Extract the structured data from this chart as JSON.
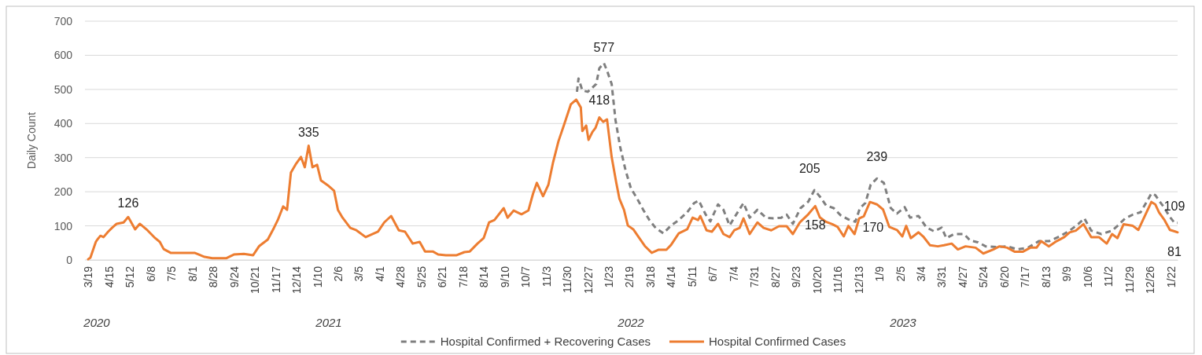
{
  "chart_data": {
    "type": "line",
    "ylabel": "Daily Count",
    "xlim": [
      "2020-03-19",
      "2024-01-31"
    ],
    "ylim": [
      0,
      700
    ],
    "yticks": [
      0,
      100,
      200,
      300,
      400,
      500,
      600,
      700
    ],
    "xticks": [
      {
        "value": "2020-03-19",
        "label": "3/19"
      },
      {
        "value": "2020-04-15",
        "label": "4/15"
      },
      {
        "value": "2020-05-12",
        "label": "5/12"
      },
      {
        "value": "2020-06-08",
        "label": "6/8"
      },
      {
        "value": "2020-07-05",
        "label": "7/5"
      },
      {
        "value": "2020-08-01",
        "label": "8/1"
      },
      {
        "value": "2020-08-28",
        "label": "8/28"
      },
      {
        "value": "2020-09-24",
        "label": "9/24"
      },
      {
        "value": "2020-10-21",
        "label": "10/21"
      },
      {
        "value": "2020-11-17",
        "label": "11/17"
      },
      {
        "value": "2020-12-14",
        "label": "12/14"
      },
      {
        "value": "2021-01-10",
        "label": "1/10"
      },
      {
        "value": "2021-02-06",
        "label": "2/6"
      },
      {
        "value": "2021-03-05",
        "label": "3/5"
      },
      {
        "value": "2021-04-01",
        "label": "4/1"
      },
      {
        "value": "2021-04-28",
        "label": "4/28"
      },
      {
        "value": "2021-05-25",
        "label": "5/25"
      },
      {
        "value": "2021-06-21",
        "label": "6/21"
      },
      {
        "value": "2021-07-18",
        "label": "7/18"
      },
      {
        "value": "2021-08-14",
        "label": "8/14"
      },
      {
        "value": "2021-09-10",
        "label": "9/10"
      },
      {
        "value": "2021-10-07",
        "label": "10/7"
      },
      {
        "value": "2021-11-03",
        "label": "11/3"
      },
      {
        "value": "2021-11-30",
        "label": "11/30"
      },
      {
        "value": "2021-12-27",
        "label": "12/27"
      },
      {
        "value": "2022-01-23",
        "label": "1/23"
      },
      {
        "value": "2022-02-19",
        "label": "2/19"
      },
      {
        "value": "2022-03-18",
        "label": "3/18"
      },
      {
        "value": "2022-04-14",
        "label": "4/14"
      },
      {
        "value": "2022-05-11",
        "label": "5/11"
      },
      {
        "value": "2022-06-07",
        "label": "6/7"
      },
      {
        "value": "2022-07-04",
        "label": "7/4"
      },
      {
        "value": "2022-07-31",
        "label": "7/31"
      },
      {
        "value": "2022-08-27",
        "label": "8/27"
      },
      {
        "value": "2022-09-23",
        "label": "9/23"
      },
      {
        "value": "2022-10-20",
        "label": "10/20"
      },
      {
        "value": "2022-11-16",
        "label": "11/16"
      },
      {
        "value": "2022-12-13",
        "label": "12/13"
      },
      {
        "value": "2023-01-09",
        "label": "1/9"
      },
      {
        "value": "2023-02-05",
        "label": "2/5"
      },
      {
        "value": "2023-03-04",
        "label": "3/4"
      },
      {
        "value": "2023-03-31",
        "label": "3/31"
      },
      {
        "value": "2023-04-27",
        "label": "4/27"
      },
      {
        "value": "2023-05-24",
        "label": "5/24"
      },
      {
        "value": "2023-06-20",
        "label": "6/20"
      },
      {
        "value": "2023-07-17",
        "label": "7/17"
      },
      {
        "value": "2023-08-13",
        "label": "8/13"
      },
      {
        "value": "2023-09-09",
        "label": "9/9"
      },
      {
        "value": "2023-10-06",
        "label": "10/6"
      },
      {
        "value": "2023-11-02",
        "label": "11/2"
      },
      {
        "value": "2023-11-29",
        "label": "11/29"
      },
      {
        "value": "2023-12-26",
        "label": "12/26"
      },
      {
        "value": "2024-01-22",
        "label": "1/22"
      }
    ],
    "grid": "y",
    "legend": "bottom",
    "series": [
      {
        "name": "Hospital Confirmed + Recovering Cases",
        "color": "#7f7f7f",
        "line_style": "dashed",
        "x": [
          "2021-12-13",
          "2021-12-15",
          "2021-12-20",
          "2021-12-27",
          "2022-01-02",
          "2022-01-07",
          "2022-01-11",
          "2022-01-17",
          "2022-01-21",
          "2022-01-27",
          "2022-02-01",
          "2022-02-07",
          "2022-02-14",
          "2022-02-21",
          "2022-03-01",
          "2022-03-09",
          "2022-03-17",
          "2022-03-25",
          "2022-04-04",
          "2022-04-14",
          "2022-04-24",
          "2022-05-05",
          "2022-05-14",
          "2022-05-20",
          "2022-05-29",
          "2022-06-04",
          "2022-06-14",
          "2022-06-21",
          "2022-06-29",
          "2022-07-05",
          "2022-07-17",
          "2022-07-25",
          "2022-08-04",
          "2022-08-15",
          "2022-08-25",
          "2022-09-04",
          "2022-09-11",
          "2022-09-19",
          "2022-09-29",
          "2022-10-09",
          "2022-10-17",
          "2022-10-24",
          "2022-11-01",
          "2022-11-11",
          "2022-11-20",
          "2022-11-30",
          "2022-12-09",
          "2022-12-15",
          "2022-12-22",
          "2022-12-29",
          "2023-01-06",
          "2023-01-15",
          "2023-01-24",
          "2023-02-01",
          "2023-02-11",
          "2023-02-18",
          "2023-03-01",
          "2023-03-11",
          "2023-03-21",
          "2023-03-31",
          "2023-04-06",
          "2023-04-16",
          "2023-04-29",
          "2023-05-07",
          "2023-05-17",
          "2023-05-27",
          "2023-06-11",
          "2023-06-24",
          "2023-07-07",
          "2023-07-21",
          "2023-08-04",
          "2023-08-17",
          "2023-08-31",
          "2023-09-13",
          "2023-09-24",
          "2023-10-02",
          "2023-10-11",
          "2023-10-24",
          "2023-11-07",
          "2023-11-14",
          "2023-11-24",
          "2023-12-04",
          "2023-12-14",
          "2023-12-21",
          "2023-12-28",
          "2024-01-02",
          "2024-01-07",
          "2024-01-14",
          "2024-01-21",
          "2024-01-27",
          "2024-01-31"
        ],
        "values": [
          493,
          532,
          497,
          493,
          505,
          516,
          562,
          577,
          555,
          516,
          410,
          332,
          263,
          210,
          180,
          147,
          117,
          94,
          78,
          101,
          117,
          140,
          167,
          174,
          133,
          113,
          163,
          147,
          101,
          124,
          167,
          124,
          147,
          124,
          122,
          124,
          133,
          106,
          152,
          171,
          205,
          186,
          160,
          152,
          131,
          119,
          112,
          152,
          167,
          221,
          239,
          226,
          152,
          136,
          155,
          124,
          129,
          96,
          84,
          95,
          64,
          76,
          76,
          57,
          52,
          40,
          38,
          40,
          31,
          36,
          55,
          55,
          69,
          86,
          105,
          122,
          86,
          76,
          86,
          100,
          122,
          133,
          140,
          167,
          195,
          190,
          174,
          152,
          126,
          109,
          109
        ]
      },
      {
        "name": "Hospital Confirmed Cases",
        "color": "#ed7d31",
        "line_style": "solid",
        "x": [
          "2020-03-19",
          "2020-03-22",
          "2020-03-29",
          "2020-03-31",
          "2020-04-04",
          "2020-04-08",
          "2020-04-14",
          "2020-04-19",
          "2020-04-25",
          "2020-05-04",
          "2020-05-10",
          "2020-05-19",
          "2020-05-25",
          "2020-06-04",
          "2020-06-14",
          "2020-06-20",
          "2020-06-25",
          "2020-07-04",
          "2020-07-20",
          "2020-08-04",
          "2020-08-17",
          "2020-08-27",
          "2020-09-14",
          "2020-09-24",
          "2020-10-07",
          "2020-10-19",
          "2020-10-27",
          "2020-11-07",
          "2020-11-15",
          "2020-11-20",
          "2020-11-27",
          "2020-12-02",
          "2020-12-07",
          "2020-12-14",
          "2020-12-20",
          "2020-12-25",
          "2020-12-30",
          "2021-01-04",
          "2021-01-10",
          "2021-01-15",
          "2021-01-25",
          "2021-02-01",
          "2021-02-06",
          "2021-02-12",
          "2021-02-22",
          "2021-03-02",
          "2021-03-14",
          "2021-03-30",
          "2021-04-07",
          "2021-04-16",
          "2021-04-26",
          "2021-05-04",
          "2021-05-14",
          "2021-05-23",
          "2021-05-30",
          "2021-06-09",
          "2021-06-16",
          "2021-06-26",
          "2021-07-10",
          "2021-07-20",
          "2021-07-27",
          "2021-08-06",
          "2021-08-14",
          "2021-08-21",
          "2021-08-28",
          "2021-09-09",
          "2021-09-14",
          "2021-09-22",
          "2021-10-02",
          "2021-10-11",
          "2021-10-17",
          "2021-10-22",
          "2021-10-30",
          "2021-11-06",
          "2021-11-12",
          "2021-11-19",
          "2021-11-27",
          "2021-12-05",
          "2021-12-12",
          "2021-12-18",
          "2021-12-20",
          "2021-12-25",
          "2021-12-28",
          "2022-01-02",
          "2022-01-06",
          "2022-01-11",
          "2022-01-16",
          "2022-01-21",
          "2022-01-27",
          "2022-02-02",
          "2022-02-06",
          "2022-02-12",
          "2022-02-17",
          "2022-02-24",
          "2022-03-03",
          "2022-03-11",
          "2022-03-20",
          "2022-03-29",
          "2022-04-08",
          "2022-04-14",
          "2022-04-24",
          "2022-05-05",
          "2022-05-12",
          "2022-05-19",
          "2022-05-22",
          "2022-05-30",
          "2022-06-06",
          "2022-06-14",
          "2022-06-21",
          "2022-06-29",
          "2022-07-05",
          "2022-07-12",
          "2022-07-17",
          "2022-07-25",
          "2022-08-04",
          "2022-08-12",
          "2022-08-22",
          "2022-09-01",
          "2022-09-11",
          "2022-09-19",
          "2022-09-28",
          "2022-10-09",
          "2022-10-18",
          "2022-10-24",
          "2022-11-01",
          "2022-11-09",
          "2022-11-16",
          "2022-11-24",
          "2022-11-30",
          "2022-12-08",
          "2022-12-14",
          "2022-12-20",
          "2022-12-28",
          "2023-01-06",
          "2023-01-14",
          "2023-01-22",
          "2023-02-01",
          "2023-02-08",
          "2023-02-13",
          "2023-02-19",
          "2023-03-01",
          "2023-03-07",
          "2023-03-16",
          "2023-03-26",
          "2023-04-03",
          "2023-04-13",
          "2023-04-21",
          "2023-05-01",
          "2023-05-14",
          "2023-05-24",
          "2023-06-06",
          "2023-06-14",
          "2023-06-24",
          "2023-07-04",
          "2023-07-14",
          "2023-07-24",
          "2023-08-01",
          "2023-08-07",
          "2023-08-17",
          "2023-08-27",
          "2023-09-06",
          "2023-09-13",
          "2023-09-21",
          "2023-10-01",
          "2023-10-11",
          "2023-10-21",
          "2023-10-31",
          "2023-11-07",
          "2023-11-14",
          "2023-11-22",
          "2023-12-04",
          "2023-12-11",
          "2023-12-17",
          "2023-12-28",
          "2024-01-02",
          "2024-01-07",
          "2024-01-14",
          "2024-01-21",
          "2024-01-27",
          "2024-01-31"
        ],
        "values": [
          2,
          7,
          53,
          60,
          71,
          67,
          83,
          94,
          106,
          110,
          126,
          90,
          106,
          87,
          64,
          53,
          32,
          21,
          21,
          21,
          9,
          5,
          5,
          16,
          18,
          14,
          41,
          60,
          94,
          117,
          157,
          147,
          256,
          283,
          302,
          272,
          335,
          272,
          279,
          233,
          217,
          203,
          147,
          124,
          94,
          87,
          67,
          83,
          110,
          129,
          87,
          83,
          48,
          53,
          25,
          25,
          16,
          14,
          14,
          23,
          25,
          48,
          64,
          110,
          117,
          152,
          124,
          145,
          134,
          145,
          194,
          226,
          187,
          221,
          286,
          348,
          401,
          456,
          470,
          447,
          378,
          394,
          352,
          375,
          387,
          418,
          405,
          412,
          302,
          226,
          180,
          147,
          101,
          90,
          67,
          41,
          21,
          30,
          30,
          44,
          78,
          90,
          124,
          117,
          129,
          87,
          83,
          106,
          76,
          67,
          87,
          94,
          122,
          76,
          110,
          94,
          87,
          99,
          99,
          76,
          110,
          134,
          158,
          125,
          112,
          105,
          97,
          69,
          100,
          76,
          122,
          128,
          170,
          163,
          148,
          97,
          88,
          69,
          100,
          64,
          81,
          69,
          43,
          40,
          43,
          48,
          31,
          40,
          36,
          19,
          31,
          40,
          36,
          24,
          24,
          36,
          36,
          55,
          40,
          55,
          67,
          81,
          86,
          105,
          67,
          67,
          48,
          76,
          64,
          105,
          100,
          88,
          117,
          170,
          163,
          139,
          117,
          88,
          84,
          81
        ]
      }
    ],
    "annotations": [
      {
        "text": "126",
        "x": "2020-05-10",
        "y": 126
      },
      {
        "text": "335",
        "x": "2020-12-30",
        "y": 335
      },
      {
        "text": "577",
        "x": "2022-01-17",
        "y": 577
      },
      {
        "text": "418",
        "x": "2022-01-11",
        "y": 418
      },
      {
        "text": "205",
        "x": "2022-10-17",
        "y": 205
      },
      {
        "text": "158",
        "x": "2022-10-18",
        "y": 158
      },
      {
        "text": "239",
        "x": "2023-01-06",
        "y": 239
      },
      {
        "text": "170",
        "x": "2022-12-28",
        "y": 170
      },
      {
        "text": "109",
        "x": "2024-01-31",
        "y": 109
      },
      {
        "text": "81",
        "x": "2024-01-31",
        "y": 81
      },
      "2020",
      "2021",
      "2022",
      "2023"
    ]
  }
}
